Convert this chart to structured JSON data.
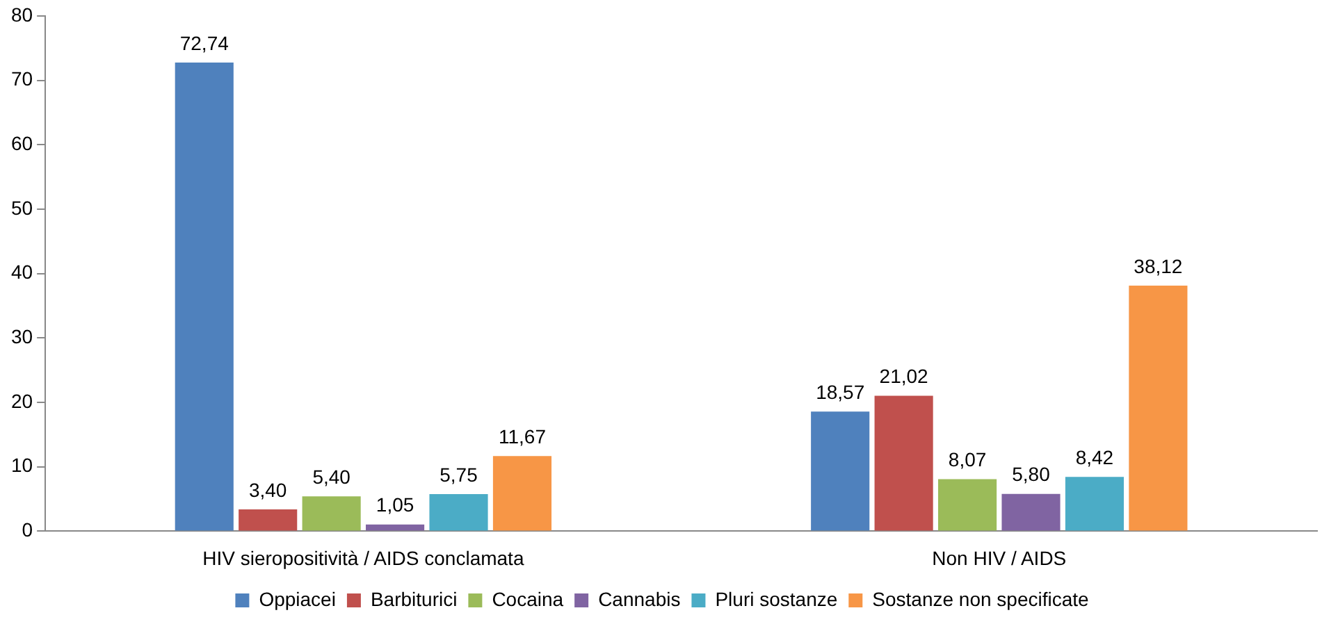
{
  "chart_data": {
    "type": "bar",
    "categories": [
      "HIV sieropositività / AIDS conclamata",
      "Non HIV / AIDS"
    ],
    "series": [
      {
        "name": "Oppiacei",
        "color": "#4f81bd",
        "values": [
          72.74,
          18.57
        ],
        "value_labels": [
          "72,74",
          "18,57"
        ]
      },
      {
        "name": "Barbiturici",
        "color": "#c0504d",
        "values": [
          3.4,
          21.02
        ],
        "value_labels": [
          "3,40",
          "21,02"
        ]
      },
      {
        "name": "Cocaina",
        "color": "#9bbb59",
        "values": [
          5.4,
          8.07
        ],
        "value_labels": [
          "5,40",
          "8,07"
        ]
      },
      {
        "name": "Cannabis",
        "color": "#8064a2",
        "values": [
          1.05,
          5.8
        ],
        "value_labels": [
          "1,05",
          "5,80"
        ]
      },
      {
        "name": "Pluri sostanze",
        "color": "#4bacc6",
        "values": [
          5.75,
          8.42
        ],
        "value_labels": [
          "5,75",
          "8,42"
        ]
      },
      {
        "name": "Sostanze non specificate",
        "color": "#f79646",
        "values": [
          11.67,
          38.12
        ],
        "value_labels": [
          "11,67",
          "38,12"
        ]
      }
    ],
    "ylim": [
      0,
      80
    ],
    "yticks": [
      0,
      10,
      20,
      30,
      40,
      50,
      60,
      70,
      80
    ],
    "grid": false,
    "legend": "bottom"
  }
}
